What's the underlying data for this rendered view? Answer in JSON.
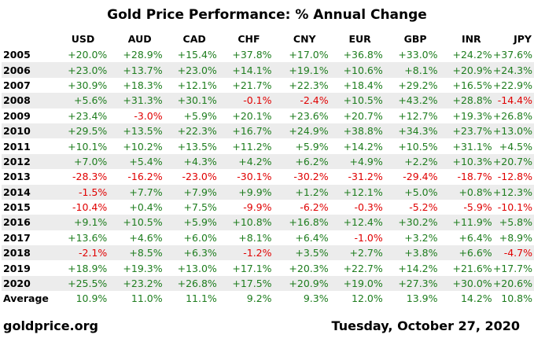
{
  "title": "Gold Price Performance: % Annual Change",
  "columns": [
    "USD",
    "AUD",
    "CAD",
    "CHF",
    "CNY",
    "EUR",
    "GBP",
    "INR",
    "JPY"
  ],
  "rows": [
    {
      "year": "2005",
      "values": [
        "+20.0%",
        "+28.9%",
        "+15.4%",
        "+37.8%",
        "+17.0%",
        "+36.8%",
        "+33.0%",
        "+24.2%",
        "+37.6%"
      ]
    },
    {
      "year": "2006",
      "values": [
        "+23.0%",
        "+13.7%",
        "+23.0%",
        "+14.1%",
        "+19.1%",
        "+10.6%",
        "+8.1%",
        "+20.9%",
        "+24.3%"
      ]
    },
    {
      "year": "2007",
      "values": [
        "+30.9%",
        "+18.3%",
        "+12.1%",
        "+21.7%",
        "+22.3%",
        "+18.4%",
        "+29.2%",
        "+16.5%",
        "+22.9%"
      ]
    },
    {
      "year": "2008",
      "values": [
        "+5.6%",
        "+31.3%",
        "+30.1%",
        "-0.1%",
        "-2.4%",
        "+10.5%",
        "+43.2%",
        "+28.8%",
        "-14.4%"
      ]
    },
    {
      "year": "2009",
      "values": [
        "+23.4%",
        "-3.0%",
        "+5.9%",
        "+20.1%",
        "+23.6%",
        "+20.7%",
        "+12.7%",
        "+19.3%",
        "+26.8%"
      ]
    },
    {
      "year": "2010",
      "values": [
        "+29.5%",
        "+13.5%",
        "+22.3%",
        "+16.7%",
        "+24.9%",
        "+38.8%",
        "+34.3%",
        "+23.7%",
        "+13.0%"
      ]
    },
    {
      "year": "2011",
      "values": [
        "+10.1%",
        "+10.2%",
        "+13.5%",
        "+11.2%",
        "+5.9%",
        "+14.2%",
        "+10.5%",
        "+31.1%",
        "+4.5%"
      ]
    },
    {
      "year": "2012",
      "values": [
        "+7.0%",
        "+5.4%",
        "+4.3%",
        "+4.2%",
        "+6.2%",
        "+4.9%",
        "+2.2%",
        "+10.3%",
        "+20.7%"
      ]
    },
    {
      "year": "2013",
      "values": [
        "-28.3%",
        "-16.2%",
        "-23.0%",
        "-30.1%",
        "-30.2%",
        "-31.2%",
        "-29.4%",
        "-18.7%",
        "-12.8%"
      ]
    },
    {
      "year": "2014",
      "values": [
        "-1.5%",
        "+7.7%",
        "+7.9%",
        "+9.9%",
        "+1.2%",
        "+12.1%",
        "+5.0%",
        "+0.8%",
        "+12.3%"
      ]
    },
    {
      "year": "2015",
      "values": [
        "-10.4%",
        "+0.4%",
        "+7.5%",
        "-9.9%",
        "-6.2%",
        "-0.3%",
        "-5.2%",
        "-5.9%",
        "-10.1%"
      ]
    },
    {
      "year": "2016",
      "values": [
        "+9.1%",
        "+10.5%",
        "+5.9%",
        "+10.8%",
        "+16.8%",
        "+12.4%",
        "+30.2%",
        "+11.9%",
        "+5.8%"
      ]
    },
    {
      "year": "2017",
      "values": [
        "+13.6%",
        "+4.6%",
        "+6.0%",
        "+8.1%",
        "+6.4%",
        "-1.0%",
        "+3.2%",
        "+6.4%",
        "+8.9%"
      ]
    },
    {
      "year": "2018",
      "values": [
        "-2.1%",
        "+8.5%",
        "+6.3%",
        "-1.2%",
        "+3.5%",
        "+2.7%",
        "+3.8%",
        "+6.6%",
        "-4.7%"
      ]
    },
    {
      "year": "2019",
      "values": [
        "+18.9%",
        "+19.3%",
        "+13.0%",
        "+17.1%",
        "+20.3%",
        "+22.7%",
        "+14.2%",
        "+21.6%",
        "+17.7%"
      ]
    },
    {
      "year": "2020",
      "values": [
        "+25.5%",
        "+23.2%",
        "+26.8%",
        "+17.5%",
        "+20.9%",
        "+19.0%",
        "+27.3%",
        "+30.0%",
        "+20.6%"
      ]
    }
  ],
  "average": {
    "label": "Average",
    "values": [
      "10.9%",
      "11.0%",
      "11.1%",
      "9.2%",
      "9.3%",
      "12.0%",
      "13.9%",
      "14.2%",
      "10.8%"
    ]
  },
  "footer": {
    "source": "goldprice.org",
    "date": "Tuesday, October 27, 2020"
  },
  "colors": {
    "positive": "#1e7d1e",
    "negative": "#e00000",
    "row_shade": "#ececec"
  }
}
